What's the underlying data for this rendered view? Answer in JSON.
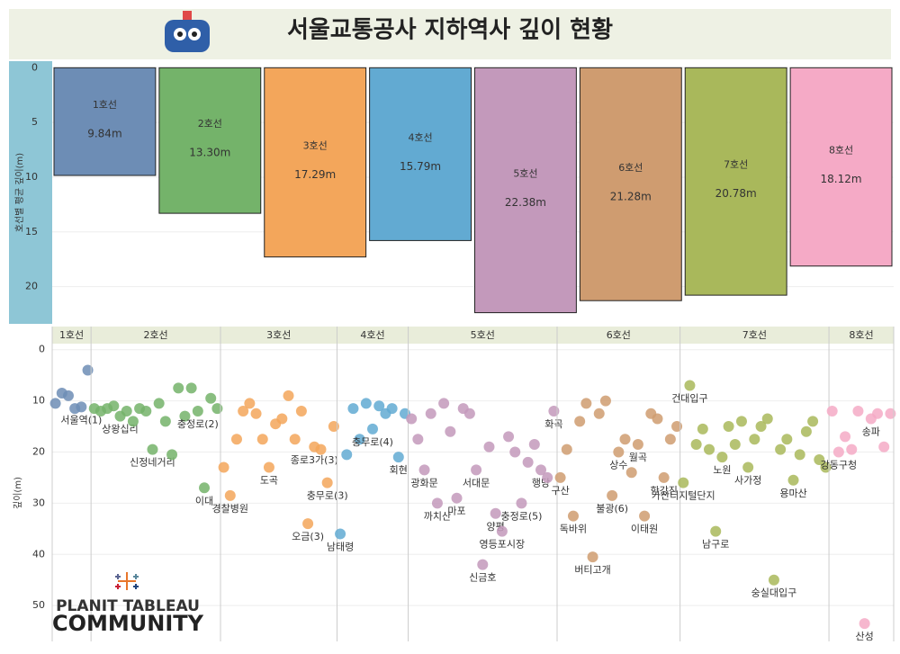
{
  "header": {
    "title": "서울교통공사 지하역사 깊이 현황"
  },
  "chart_data": [
    {
      "type": "bar",
      "y_label": "호선별 평균 깊이(m)",
      "inverted": true,
      "grid": true,
      "categories": [
        "1호선",
        "2호선",
        "3호선",
        "4호선",
        "5호선",
        "6호선",
        "7호선",
        "8호선"
      ],
      "values": [
        9.84,
        13.3,
        17.29,
        15.79,
        22.38,
        21.28,
        20.78,
        18.12
      ],
      "value_labels": [
        "9.84m",
        "13.30m",
        "17.29m",
        "15.79m",
        "22.38m",
        "21.28m",
        "20.78m",
        "18.12m"
      ],
      "colors": [
        "#6d8db5",
        "#74b36a",
        "#f3a65b",
        "#62aad2",
        "#c399bb",
        "#cf9c70",
        "#a9b85b",
        "#f5aac6"
      ],
      "ylim": [
        -0.6,
        23.4
      ],
      "yticks": [
        0,
        5,
        10,
        15,
        20
      ]
    },
    {
      "type": "strip",
      "y_label": "깊이(m)",
      "inverted": true,
      "grid": true,
      "ylim": [
        -1,
        57
      ],
      "yticks": [
        0,
        10,
        20,
        30,
        40,
        50
      ],
      "series": [
        {
          "name": "1호선",
          "color": "#6d8db5",
          "values": [
            10.5,
            8.5,
            9.0,
            11.5,
            11.2,
            4.0
          ],
          "labels": [
            null,
            null,
            null,
            null,
            "서울역(1)",
            null
          ]
        },
        {
          "name": "2호선",
          "color": "#74b36a",
          "values": [
            11.5,
            12,
            11.5,
            11,
            13,
            12,
            14,
            11.5,
            12,
            19.5,
            10.5,
            14,
            20.5,
            7.5,
            13,
            7.5,
            12,
            27,
            9.5,
            11.5
          ],
          "labels": [
            null,
            null,
            null,
            null,
            "상왕십리",
            null,
            null,
            null,
            null,
            "신정네거리",
            null,
            null,
            null,
            null,
            null,
            null,
            "충정로(2)",
            "이대",
            null,
            null
          ]
        },
        {
          "name": "3호선",
          "color": "#f3a65b",
          "values": [
            23,
            28.5,
            17.5,
            12,
            10.5,
            12.5,
            17.5,
            23,
            14.5,
            13.5,
            9,
            17.5,
            12,
            34,
            19,
            19.5,
            26,
            15
          ],
          "labels": [
            null,
            "경찰병원",
            null,
            null,
            null,
            null,
            null,
            "도곡",
            null,
            null,
            null,
            null,
            null,
            "오금(3)",
            "종로3가(3)",
            null,
            "충무로(3)",
            null
          ]
        },
        {
          "name": "4호선",
          "color": "#62aad2",
          "values": [
            36,
            20.5,
            11.5,
            17.5,
            10.5,
            15.5,
            11,
            12.5,
            11.5,
            21,
            12.5
          ],
          "labels": [
            "남태령",
            null,
            null,
            null,
            null,
            "충무로(4)",
            null,
            null,
            null,
            "회현",
            null
          ]
        },
        {
          "name": "5호선",
          "color": "#c399bb",
          "values": [
            13.5,
            17.5,
            23.5,
            12.5,
            30,
            10.5,
            16,
            29,
            11.5,
            12.5,
            23.5,
            42,
            19,
            32,
            35.5,
            17,
            20,
            30,
            22,
            18.5,
            23.5,
            25,
            12
          ],
          "labels": [
            null,
            null,
            "광화문",
            null,
            "까치산",
            null,
            null,
            "마포",
            null,
            null,
            "서대문",
            "신금호",
            null,
            "양평",
            "영등포시장",
            null,
            null,
            "충정로(5)",
            null,
            null,
            "행당",
            null,
            "화곡"
          ]
        },
        {
          "name": "6호선",
          "color": "#cf9c70",
          "values": [
            25,
            19.5,
            32.5,
            14,
            10.5,
            40.5,
            12.5,
            10,
            28.5,
            20,
            17.5,
            24,
            18.5,
            32.5,
            12.5,
            13.5,
            25,
            17.5,
            15
          ],
          "labels": [
            "구산",
            null,
            "독바위",
            null,
            null,
            "버티고개",
            null,
            null,
            "불광(6)",
            "상수",
            null,
            null,
            "월곡",
            "이태원",
            null,
            null,
            "한강진",
            null,
            null
          ]
        },
        {
          "name": "7호선",
          "color": "#a9b85b",
          "values": [
            26,
            7,
            18.5,
            15.5,
            19.5,
            35.5,
            21,
            15,
            18.5,
            14,
            23,
            17.5,
            15,
            13.5,
            45,
            19.5,
            17.5,
            25.5,
            20.5,
            16,
            14,
            21.5,
            23
          ],
          "labels": [
            "가산디지털단지",
            "건대입구",
            null,
            null,
            null,
            "남구로",
            "노원",
            null,
            null,
            null,
            "사가정",
            null,
            null,
            null,
            "숭실대입구",
            null,
            null,
            "용마산",
            null,
            null,
            null,
            null,
            null
          ]
        },
        {
          "name": "8호선",
          "color": "#f5aac6",
          "values": [
            12,
            20,
            17,
            19.5,
            12,
            53.5,
            13.5,
            12.5,
            19,
            12.5
          ],
          "labels": [
            null,
            "강동구청",
            null,
            null,
            null,
            "산성",
            "송파",
            null,
            null,
            null
          ]
        }
      ]
    }
  ],
  "watermark": {
    "line1": "PLANIT TABLEAU",
    "line2": "COMMUNITY"
  }
}
